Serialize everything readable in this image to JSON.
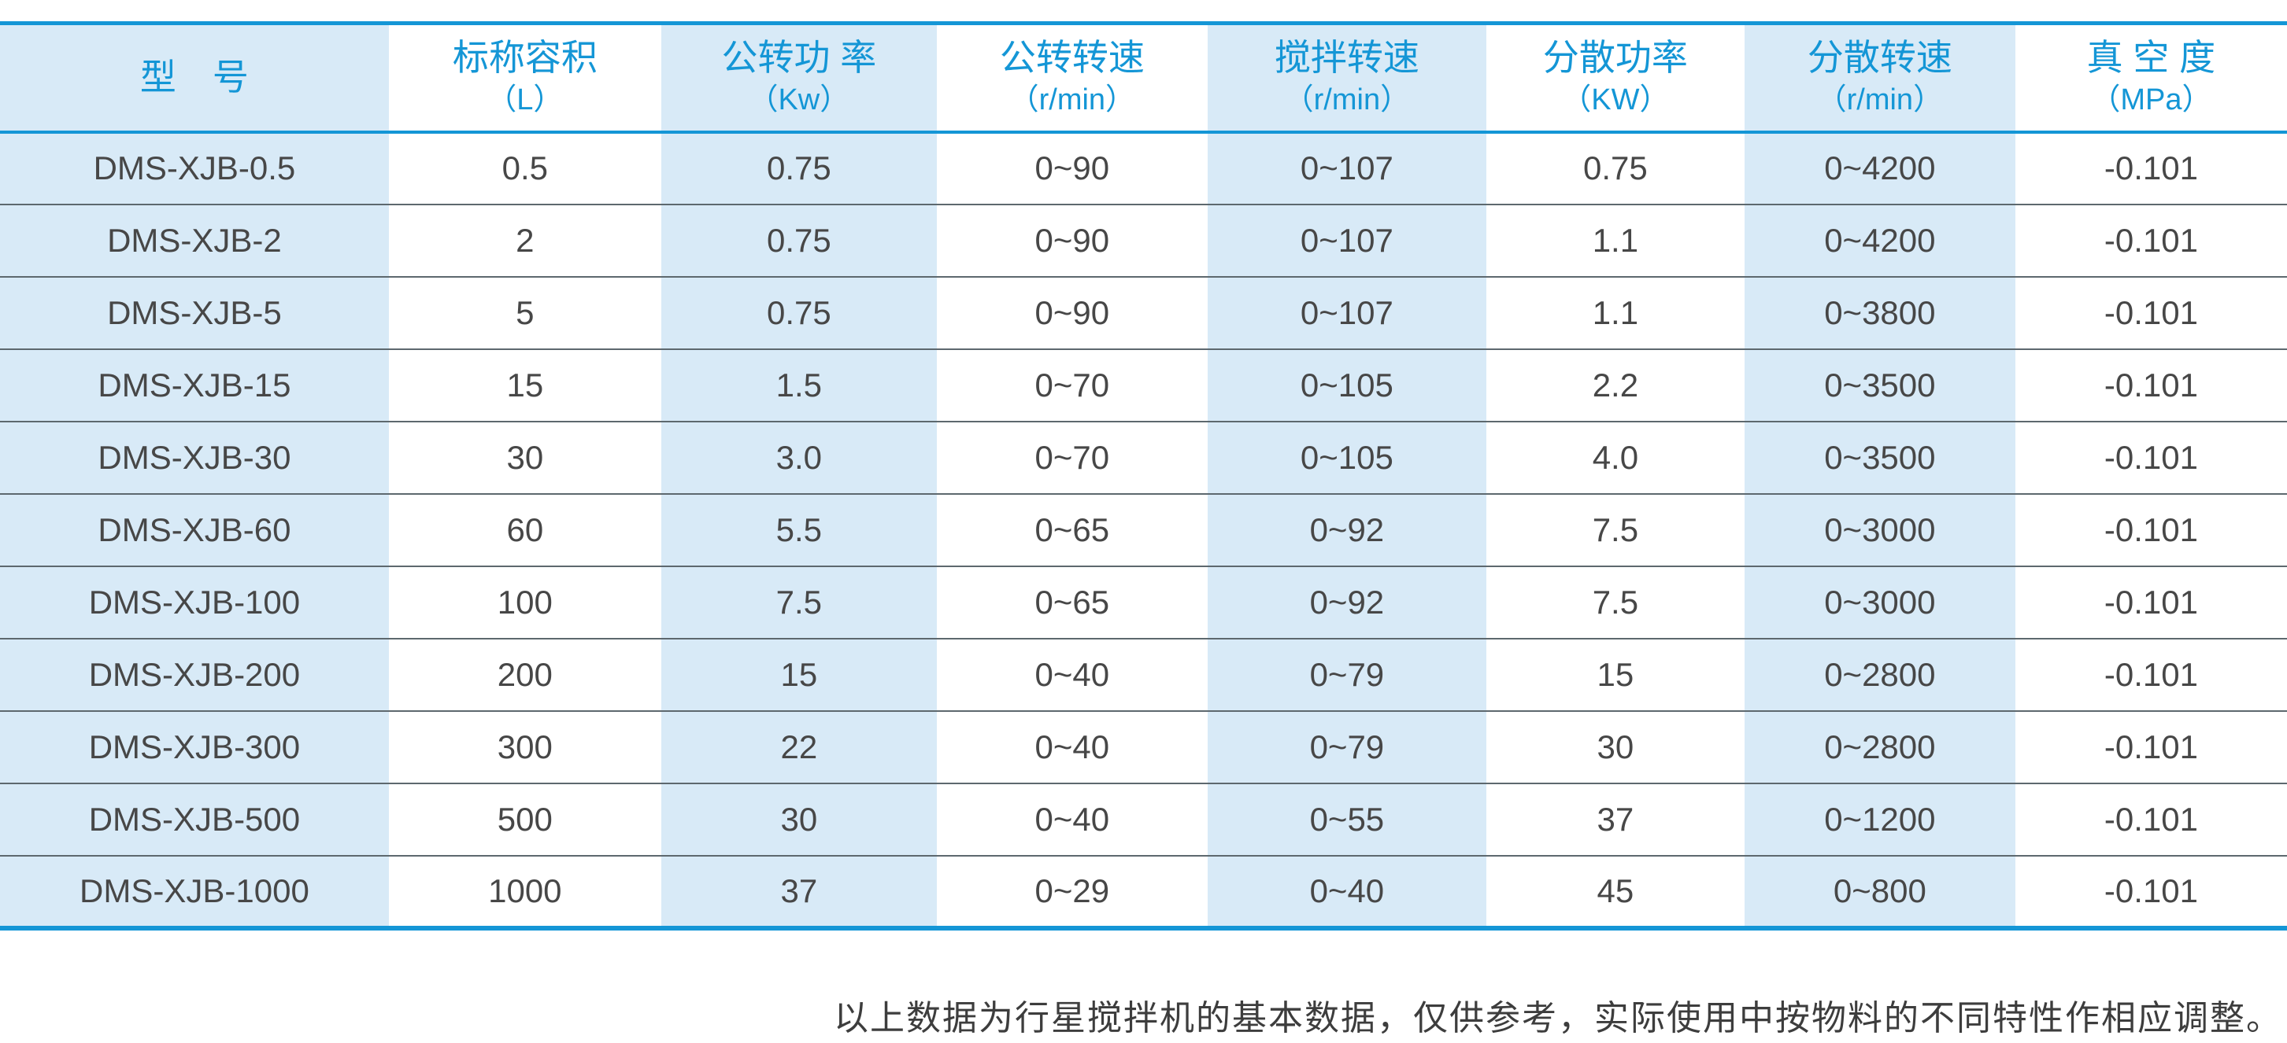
{
  "colors": {
    "accent_blue": "#1496d6",
    "stripe_blue": "#d8eaf7",
    "row_divider": "#5d686e",
    "body_text": "#474747",
    "note_text": "#3d3d3d"
  },
  "table": {
    "columns": [
      {
        "key": "model",
        "title": "型　号",
        "unit": ""
      },
      {
        "key": "nominal-capacity",
        "title": "标称容积",
        "unit": "（L）"
      },
      {
        "key": "revolution-power",
        "title": "公转功 率",
        "unit": "（Kw）"
      },
      {
        "key": "revolution-speed",
        "title": "公转转速",
        "unit": "（r/min）"
      },
      {
        "key": "stirring-speed",
        "title": "搅拌转速",
        "unit": "（r/min）"
      },
      {
        "key": "dispersion-power",
        "title": "分散功率",
        "unit": "（KW）"
      },
      {
        "key": "dispersion-speed",
        "title": "分散转速",
        "unit": "（r/min）"
      },
      {
        "key": "vacuum-degree",
        "title": "真 空 度",
        "unit": "（MPa）"
      }
    ],
    "rows": [
      [
        "DMS-XJB-0.5",
        "0.5",
        "0.75",
        "0~90",
        "0~107",
        "0.75",
        "0~4200",
        "-0.101"
      ],
      [
        "DMS-XJB-2",
        "2",
        "0.75",
        "0~90",
        "0~107",
        "1.1",
        "0~4200",
        "-0.101"
      ],
      [
        "DMS-XJB-5",
        "5",
        "0.75",
        "0~90",
        "0~107",
        "1.1",
        "0~3800",
        "-0.101"
      ],
      [
        "DMS-XJB-15",
        "15",
        "1.5",
        "0~70",
        "0~105",
        "2.2",
        "0~3500",
        "-0.101"
      ],
      [
        "DMS-XJB-30",
        "30",
        "3.0",
        "0~70",
        "0~105",
        "4.0",
        "0~3500",
        "-0.101"
      ],
      [
        "DMS-XJB-60",
        "60",
        "5.5",
        "0~65",
        "0~92",
        "7.5",
        "0~3000",
        "-0.101"
      ],
      [
        "DMS-XJB-100",
        "100",
        "7.5",
        "0~65",
        "0~92",
        "7.5",
        "0~3000",
        "-0.101"
      ],
      [
        "DMS-XJB-200",
        "200",
        "15",
        "0~40",
        "0~79",
        "15",
        "0~2800",
        "-0.101"
      ],
      [
        "DMS-XJB-300",
        "300",
        "22",
        "0~40",
        "0~79",
        "30",
        "0~2800",
        "-0.101"
      ],
      [
        "DMS-XJB-500",
        "500",
        "30",
        "0~40",
        "0~55",
        "37",
        "0~1200",
        "-0.101"
      ],
      [
        "DMS-XJB-1000",
        "1000",
        "37",
        "0~29",
        "0~40",
        "45",
        "0~800",
        "-0.101"
      ]
    ]
  },
  "footer": {
    "note": "以上数据为行星搅拌机的基本数据，仅供参考，实际使用中按物料的不同特性作相应调整。"
  }
}
